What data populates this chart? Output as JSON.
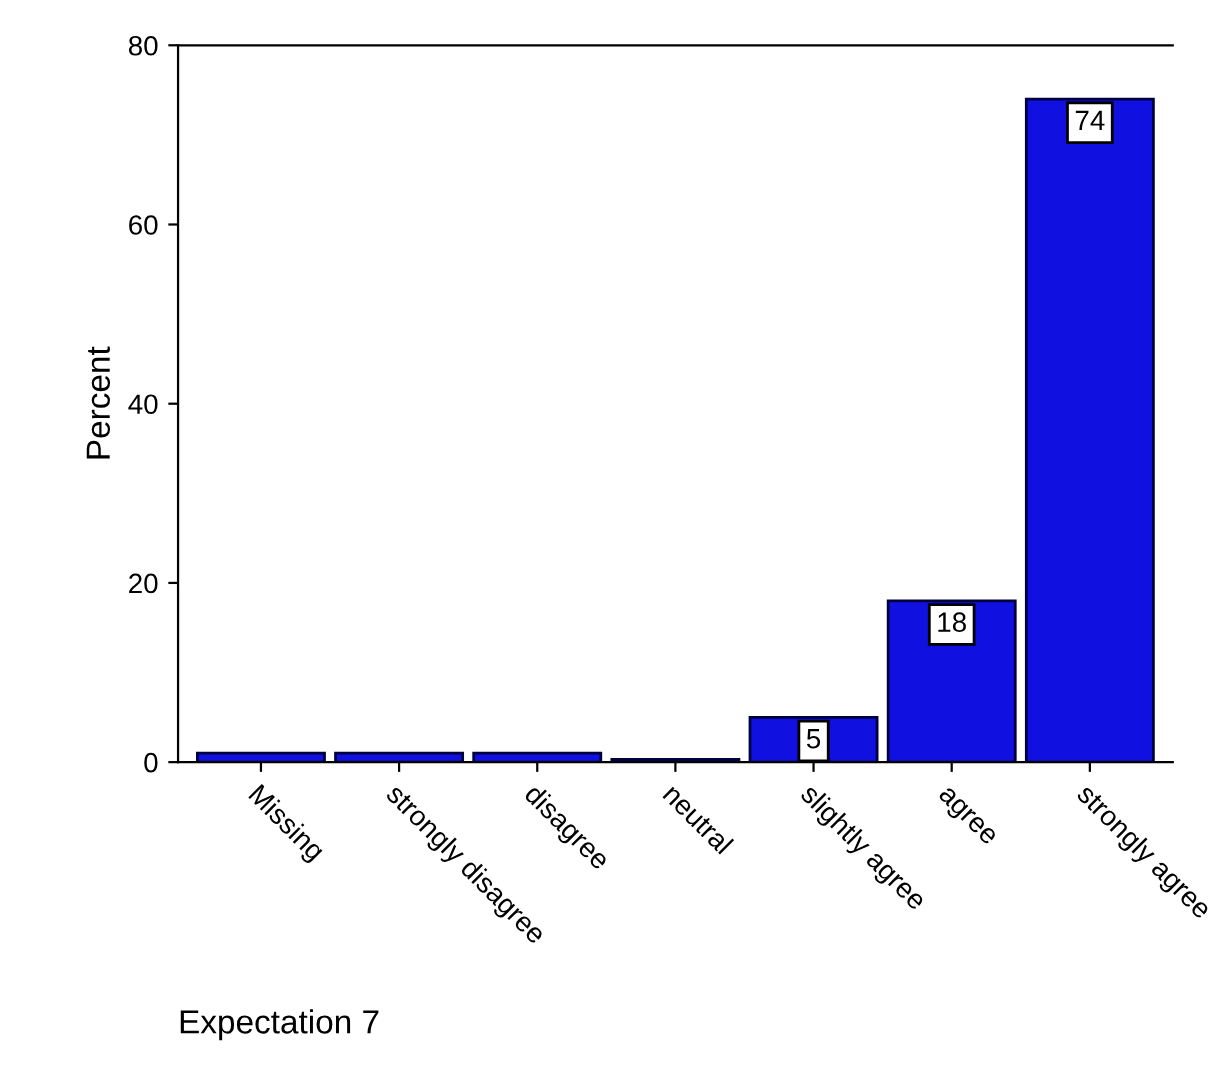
{
  "chart_data": {
    "type": "bar",
    "title": "Expectation 7",
    "ylabel": "Percent",
    "categories": [
      "Missing",
      "strongly disagree",
      "disagree",
      "neutral",
      "slightly agree",
      "agree",
      "strongly agree"
    ],
    "values": [
      1,
      1,
      1,
      0.3,
      5,
      18,
      74
    ],
    "value_labels": [
      null,
      null,
      null,
      null,
      "5",
      "18",
      "74"
    ],
    "color": "#1010e0",
    "ylim": [
      0,
      80
    ],
    "yticks": [
      0,
      20,
      40,
      60,
      80
    ],
    "grid": false,
    "legend": false
  }
}
